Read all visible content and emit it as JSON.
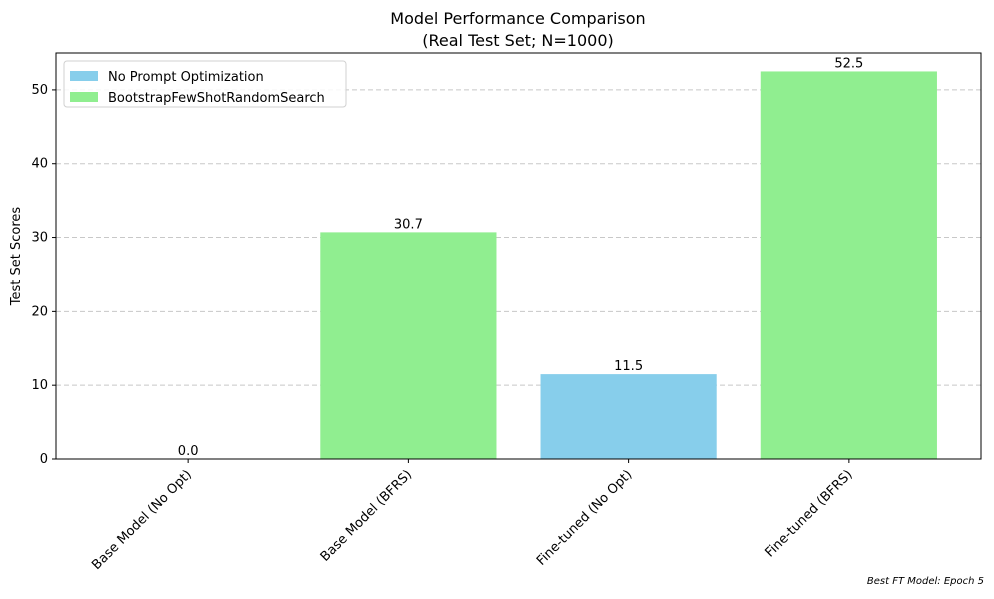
{
  "chart_data": {
    "type": "bar",
    "title": "Model Performance Comparison",
    "subtitle": "(Real Test Set; N=1000)",
    "xlabel": "",
    "ylabel": "Test Set Scores",
    "ylim": [
      0,
      55
    ],
    "yticks": [
      0,
      10,
      20,
      30,
      40,
      50
    ],
    "grid": "y-dashed",
    "legend_position": "top-left",
    "categories": [
      "Base Model (No Opt)",
      "Base Model (BFRS)",
      "Fine-tuned (No Opt)",
      "Fine-tuned (BFRS)"
    ],
    "values": [
      0.0,
      30.7,
      11.5,
      52.5
    ],
    "value_labels": [
      "0.0",
      "30.7",
      "11.5",
      "52.5"
    ],
    "bar_series": [
      "No Prompt Optimization",
      "BootstrapFewShotRandomSearch",
      "No Prompt Optimization",
      "BootstrapFewShotRandomSearch"
    ],
    "series": [
      {
        "name": "No Prompt Optimization",
        "color": "#87CEEB"
      },
      {
        "name": "BootstrapFewShotRandomSearch",
        "color": "#90EE90"
      }
    ]
  },
  "footnote": "Best FT Model: Epoch 5"
}
